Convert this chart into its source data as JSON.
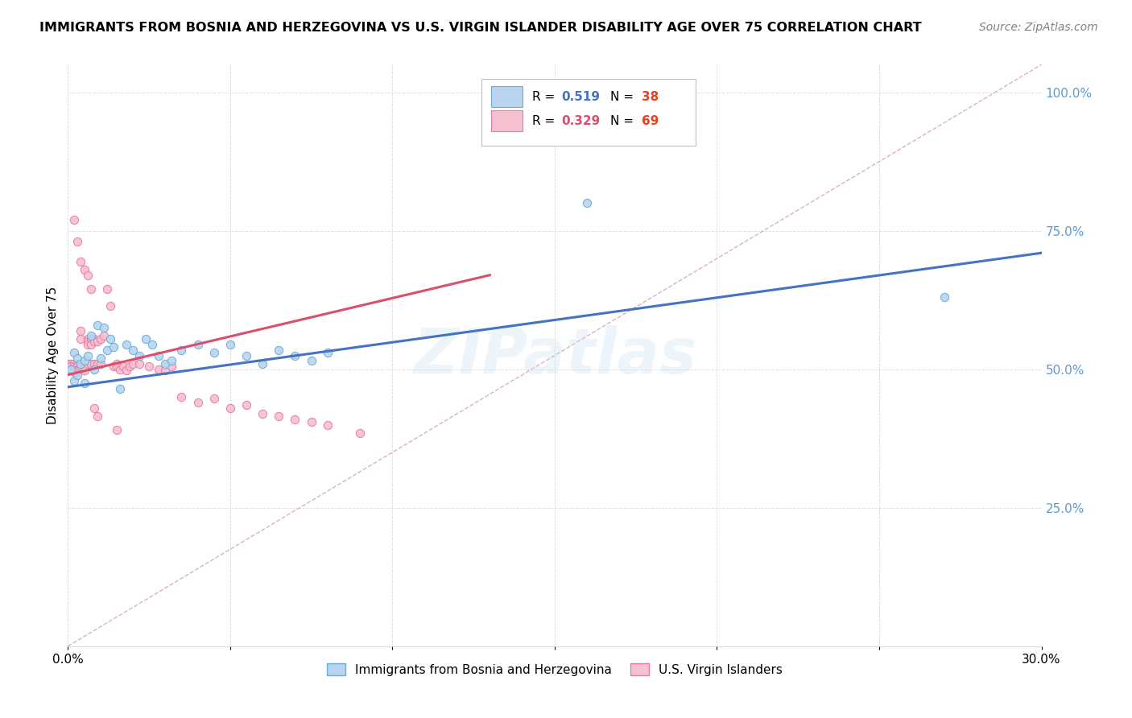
{
  "title": "IMMIGRANTS FROM BOSNIA AND HERZEGOVINA VS U.S. VIRGIN ISLANDER DISABILITY AGE OVER 75 CORRELATION CHART",
  "source": "Source: ZipAtlas.com",
  "ylabel": "Disability Age Over 75",
  "xlim": [
    0.0,
    0.3
  ],
  "ylim": [
    0.0,
    1.05
  ],
  "yticks": [
    0.25,
    0.5,
    0.75,
    1.0
  ],
  "ytick_labels": [
    "25.0%",
    "50.0%",
    "75.0%",
    "100.0%"
  ],
  "xticks": [
    0.0,
    0.05,
    0.1,
    0.15,
    0.2,
    0.25,
    0.3
  ],
  "xtick_labels": [
    "0.0%",
    "",
    "",
    "",
    "",
    "",
    "30.0%"
  ],
  "legend_blue_r": "0.519",
  "legend_blue_n": "38",
  "legend_pink_r": "0.329",
  "legend_pink_n": "69",
  "blue_color": "#b8d4ee",
  "pink_color": "#f5c0d0",
  "blue_edge": "#6aaed6",
  "pink_edge": "#e87da0",
  "trend_blue": "#4472c4",
  "trend_pink": "#d94f6e",
  "trend_gray": "#d0a0b0",
  "axis_color": "#5b9bd5",
  "n_color": "#e84020",
  "watermark": "ZIPatlas",
  "blue_scatter_x": [
    0.001,
    0.002,
    0.002,
    0.003,
    0.003,
    0.004,
    0.005,
    0.005,
    0.006,
    0.007,
    0.008,
    0.009,
    0.01,
    0.011,
    0.012,
    0.013,
    0.014,
    0.016,
    0.018,
    0.02,
    0.022,
    0.024,
    0.026,
    0.028,
    0.03,
    0.032,
    0.035,
    0.04,
    0.045,
    0.05,
    0.055,
    0.06,
    0.065,
    0.07,
    0.075,
    0.08,
    0.16,
    0.27
  ],
  "blue_scatter_y": [
    0.5,
    0.48,
    0.53,
    0.52,
    0.49,
    0.51,
    0.515,
    0.475,
    0.525,
    0.56,
    0.5,
    0.58,
    0.52,
    0.575,
    0.535,
    0.555,
    0.54,
    0.465,
    0.545,
    0.535,
    0.525,
    0.555,
    0.545,
    0.525,
    0.51,
    0.515,
    0.535,
    0.545,
    0.53,
    0.545,
    0.525,
    0.51,
    0.535,
    0.525,
    0.515,
    0.53,
    0.8,
    0.63
  ],
  "pink_scatter_x": [
    0.0005,
    0.001,
    0.001,
    0.002,
    0.002,
    0.002,
    0.002,
    0.003,
    0.003,
    0.003,
    0.003,
    0.003,
    0.004,
    0.004,
    0.004,
    0.004,
    0.005,
    0.005,
    0.005,
    0.006,
    0.006,
    0.006,
    0.006,
    0.007,
    0.007,
    0.007,
    0.008,
    0.008,
    0.008,
    0.009,
    0.009,
    0.01,
    0.01,
    0.011,
    0.012,
    0.013,
    0.014,
    0.015,
    0.015,
    0.016,
    0.017,
    0.018,
    0.019,
    0.02,
    0.022,
    0.025,
    0.028,
    0.03,
    0.032,
    0.035,
    0.04,
    0.045,
    0.05,
    0.055,
    0.06,
    0.065,
    0.07,
    0.075,
    0.08,
    0.09,
    0.002,
    0.003,
    0.004,
    0.005,
    0.006,
    0.007,
    0.008,
    0.009,
    0.015
  ],
  "pink_scatter_y": [
    0.51,
    0.51,
    0.505,
    0.51,
    0.505,
    0.5,
    0.495,
    0.51,
    0.505,
    0.5,
    0.498,
    0.495,
    0.57,
    0.555,
    0.51,
    0.505,
    0.51,
    0.505,
    0.498,
    0.555,
    0.55,
    0.545,
    0.51,
    0.555,
    0.545,
    0.51,
    0.555,
    0.55,
    0.51,
    0.55,
    0.51,
    0.555,
    0.51,
    0.56,
    0.645,
    0.615,
    0.505,
    0.51,
    0.505,
    0.5,
    0.505,
    0.498,
    0.505,
    0.51,
    0.51,
    0.505,
    0.5,
    0.498,
    0.505,
    0.45,
    0.44,
    0.448,
    0.43,
    0.435,
    0.42,
    0.415,
    0.41,
    0.405,
    0.4,
    0.385,
    0.77,
    0.73,
    0.695,
    0.68,
    0.67,
    0.645,
    0.43,
    0.415,
    0.39
  ],
  "blue_trend_x": [
    0.0,
    0.3
  ],
  "blue_trend_y": [
    0.468,
    0.71
  ],
  "pink_trend_x": [
    0.0,
    0.13
  ],
  "pink_trend_y": [
    0.49,
    0.67
  ],
  "gray_trend_x": [
    0.0,
    0.3
  ],
  "gray_trend_y": [
    0.0,
    1.05
  ]
}
